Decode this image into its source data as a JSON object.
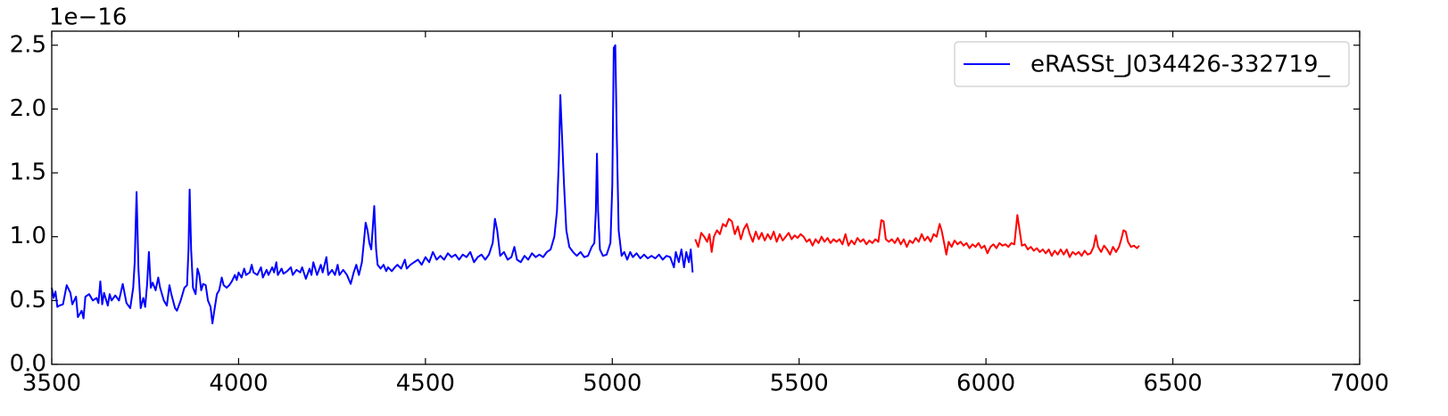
{
  "chart_data": {
    "type": "line",
    "offset_label": "1e−16",
    "xlim": [
      3500,
      7000
    ],
    "xticks": [
      3500,
      4000,
      4500,
      5000,
      5500,
      6000,
      6500,
      7000
    ],
    "ylim": [
      0,
      2.61
    ],
    "yticks": [
      {
        "value": 0,
        "label": "0.0"
      },
      0.5,
      {
        "value": 1,
        "label": "1.0"
      },
      1.5,
      {
        "value": 2,
        "label": "2.0"
      },
      2.5
    ],
    "legend": "upper right",
    "series": [
      {
        "name": "eRASSt_J034426-332719_",
        "color": "#0000ff",
        "x": [
          3500,
          3505,
          3510,
          3515,
          3520,
          3530,
          3540,
          3550,
          3555,
          3565,
          3570,
          3580,
          3585,
          3590,
          3600,
          3610,
          3620,
          3625,
          3630,
          3635,
          3640,
          3650,
          3655,
          3660,
          3670,
          3680,
          3690,
          3700,
          3710,
          3718,
          3722,
          3727,
          3732,
          3738,
          3745,
          3750,
          3755,
          3760,
          3765,
          3770,
          3778,
          3785,
          3790,
          3800,
          3808,
          3815,
          3820,
          3830,
          3835,
          3845,
          3855,
          3862,
          3866,
          3869,
          3873,
          3878,
          3885,
          3890,
          3895,
          3900,
          3905,
          3912,
          3918,
          3925,
          3930,
          3935,
          3942,
          3948,
          3955,
          3960,
          3968,
          3975,
          3982,
          3990,
          3995,
          4000,
          4008,
          4015,
          4020,
          4030,
          4035,
          4040,
          4050,
          4060,
          4065,
          4075,
          4080,
          4090,
          4095,
          4101,
          4105,
          4115,
          4120,
          4130,
          4140,
          4145,
          4155,
          4165,
          4170,
          4180,
          4190,
          4195,
          4200,
          4210,
          4220,
          4225,
          4235,
          4240,
          4250,
          4258,
          4265,
          4270,
          4280,
          4290,
          4300,
          4308,
          4315,
          4322,
          4330,
          4335,
          4340,
          4345,
          4350,
          4355,
          4363,
          4368,
          4372,
          4380,
          4388,
          4395,
          4400,
          4410,
          4418,
          4425,
          4435,
          4445,
          4450,
          4460,
          4470,
          4480,
          4490,
          4500,
          4510,
          4520,
          4530,
          4540,
          4550,
          4560,
          4570,
          4580,
          4590,
          4600,
          4610,
          4620,
          4630,
          4640,
          4650,
          4660,
          4670,
          4680,
          4686,
          4692,
          4700,
          4710,
          4720,
          4730,
          4738,
          4745,
          4755,
          4765,
          4775,
          4785,
          4795,
          4805,
          4815,
          4825,
          4835,
          4845,
          4852,
          4857,
          4861,
          4866,
          4871,
          4877,
          4885,
          4895,
          4905,
          4915,
          4925,
          4935,
          4945,
          4952,
          4956,
          4959,
          4962,
          4967,
          4975,
          4985,
          4995,
          5000,
          5004,
          5008,
          5012,
          5017,
          5025,
          5032,
          5040,
          5048,
          5055,
          5065,
          5075,
          5085,
          5095,
          5105,
          5115,
          5125,
          5135,
          5145,
          5155,
          5165,
          5170,
          5178,
          5185,
          5192,
          5198,
          5205,
          5210,
          5215
        ],
        "values": [
          0.6,
          0.52,
          0.57,
          0.45,
          0.46,
          0.47,
          0.62,
          0.56,
          0.47,
          0.53,
          0.37,
          0.42,
          0.36,
          0.53,
          0.55,
          0.5,
          0.52,
          0.48,
          0.65,
          0.47,
          0.56,
          0.46,
          0.55,
          0.5,
          0.54,
          0.5,
          0.63,
          0.48,
          0.44,
          0.6,
          0.8,
          1.35,
          0.75,
          0.44,
          0.52,
          0.45,
          0.62,
          0.88,
          0.6,
          0.64,
          0.58,
          0.68,
          0.6,
          0.5,
          0.46,
          0.62,
          0.55,
          0.44,
          0.42,
          0.5,
          0.6,
          0.62,
          0.9,
          1.37,
          0.9,
          0.6,
          0.55,
          0.75,
          0.7,
          0.58,
          0.63,
          0.62,
          0.5,
          0.45,
          0.32,
          0.42,
          0.55,
          0.58,
          0.68,
          0.62,
          0.6,
          0.62,
          0.65,
          0.7,
          0.66,
          0.72,
          0.68,
          0.75,
          0.7,
          0.72,
          0.78,
          0.72,
          0.7,
          0.76,
          0.68,
          0.74,
          0.7,
          0.76,
          0.72,
          0.8,
          0.7,
          0.75,
          0.71,
          0.73,
          0.76,
          0.7,
          0.74,
          0.72,
          0.76,
          0.67,
          0.75,
          0.7,
          0.8,
          0.7,
          0.78,
          0.72,
          0.84,
          0.7,
          0.74,
          0.7,
          0.78,
          0.7,
          0.74,
          0.7,
          0.63,
          0.72,
          0.78,
          0.7,
          0.8,
          0.95,
          1.11,
          1.05,
          0.95,
          0.9,
          1.24,
          0.9,
          0.78,
          0.75,
          0.78,
          0.73,
          0.76,
          0.73,
          0.76,
          0.78,
          0.75,
          0.82,
          0.75,
          0.78,
          0.8,
          0.82,
          0.78,
          0.84,
          0.8,
          0.88,
          0.82,
          0.85,
          0.82,
          0.87,
          0.84,
          0.86,
          0.82,
          0.86,
          0.84,
          0.88,
          0.8,
          0.84,
          0.86,
          0.82,
          0.86,
          0.95,
          1.14,
          1.05,
          0.85,
          0.88,
          0.82,
          0.84,
          0.92,
          0.82,
          0.8,
          0.85,
          0.82,
          0.87,
          0.84,
          0.86,
          0.84,
          0.88,
          0.9,
          1.0,
          1.2,
          1.6,
          2.11,
          1.75,
          1.4,
          1.05,
          0.92,
          0.88,
          0.85,
          0.88,
          0.84,
          0.85,
          0.92,
          0.95,
          1.2,
          1.65,
          1.2,
          0.9,
          0.85,
          0.86,
          0.95,
          1.4,
          2.48,
          2.5,
          1.8,
          1.05,
          0.85,
          0.88,
          0.82,
          0.88,
          0.84,
          0.87,
          0.83,
          0.86,
          0.83,
          0.85,
          0.83,
          0.86,
          0.82,
          0.85,
          0.84,
          0.76,
          0.88,
          0.8,
          0.9,
          0.76,
          0.88,
          0.8,
          0.9,
          0.72
        ]
      },
      {
        "color": "#ff0000",
        "x": [
          5222,
          5230,
          5238,
          5246,
          5254,
          5260,
          5266,
          5272,
          5280,
          5288,
          5296,
          5304,
          5312,
          5320,
          5328,
          5336,
          5344,
          5352,
          5360,
          5368,
          5376,
          5384,
          5392,
          5400,
          5408,
          5416,
          5424,
          5432,
          5440,
          5448,
          5456,
          5464,
          5472,
          5480,
          5488,
          5496,
          5504,
          5512,
          5520,
          5528,
          5536,
          5544,
          5552,
          5560,
          5568,
          5576,
          5584,
          5592,
          5600,
          5608,
          5616,
          5624,
          5632,
          5640,
          5648,
          5656,
          5664,
          5672,
          5680,
          5688,
          5696,
          5704,
          5712,
          5720,
          5726,
          5732,
          5740,
          5748,
          5756,
          5764,
          5772,
          5780,
          5788,
          5796,
          5804,
          5812,
          5820,
          5828,
          5836,
          5844,
          5852,
          5860,
          5868,
          5876,
          5882,
          5888,
          5894,
          5900,
          5908,
          5916,
          5924,
          5932,
          5940,
          5948,
          5956,
          5964,
          5972,
          5980,
          5988,
          5996,
          6004,
          6012,
          6020,
          6028,
          6036,
          6044,
          6052,
          6060,
          6068,
          6076,
          6084,
          6090,
          6096,
          6104,
          6112,
          6120,
          6128,
          6136,
          6144,
          6152,
          6160,
          6168,
          6176,
          6184,
          6192,
          6200,
          6208,
          6216,
          6224,
          6232,
          6240,
          6248,
          6256,
          6264,
          6272,
          6280,
          6288,
          6294,
          6300,
          6308,
          6316,
          6324,
          6332,
          6340,
          6348,
          6356,
          6362,
          6368,
          6374,
          6380,
          6388,
          6396,
          6404,
          6410
        ],
        "values": [
          0.98,
          0.92,
          1.03,
          1.0,
          0.96,
          1.02,
          0.88,
          1.0,
          1.05,
          1.02,
          1.1,
          1.08,
          1.14,
          1.12,
          1.02,
          1.08,
          0.98,
          1.06,
          1.1,
          1.02,
          0.96,
          1.04,
          0.98,
          1.03,
          0.97,
          1.02,
          0.98,
          1.04,
          0.96,
          1.02,
          0.97,
          1.0,
          1.03,
          0.98,
          1.01,
          0.99,
          1.02,
          1.0,
          0.96,
          0.98,
          0.93,
          0.98,
          0.95,
          1.0,
          0.96,
          0.99,
          0.95,
          0.98,
          0.96,
          0.98,
          0.94,
          1.02,
          0.93,
          0.97,
          0.94,
          0.99,
          0.96,
          0.98,
          0.94,
          0.97,
          0.95,
          0.98,
          0.96,
          1.13,
          1.12,
          0.98,
          0.96,
          0.98,
          0.95,
          0.99,
          0.94,
          0.98,
          0.92,
          0.97,
          0.95,
          0.99,
          0.96,
          1.02,
          0.97,
          1.0,
          0.96,
          1.02,
          1.0,
          1.1,
          1.04,
          0.95,
          0.86,
          0.96,
          0.92,
          0.97,
          0.94,
          0.96,
          0.93,
          0.95,
          0.91,
          0.94,
          0.92,
          0.95,
          0.91,
          0.93,
          0.87,
          0.92,
          0.94,
          0.91,
          0.95,
          0.93,
          0.94,
          0.92,
          0.95,
          0.94,
          1.17,
          1.05,
          0.93,
          0.94,
          0.9,
          0.92,
          0.89,
          0.91,
          0.88,
          0.9,
          0.87,
          0.9,
          0.85,
          0.89,
          0.86,
          0.9,
          0.86,
          0.9,
          0.84,
          0.88,
          0.86,
          0.88,
          0.85,
          0.89,
          0.86,
          0.87,
          0.92,
          1.01,
          0.92,
          0.88,
          0.93,
          0.9,
          0.86,
          0.92,
          0.88,
          0.92,
          0.98,
          1.05,
          1.04,
          0.96,
          0.92,
          0.93,
          0.91,
          0.93
        ]
      }
    ]
  }
}
